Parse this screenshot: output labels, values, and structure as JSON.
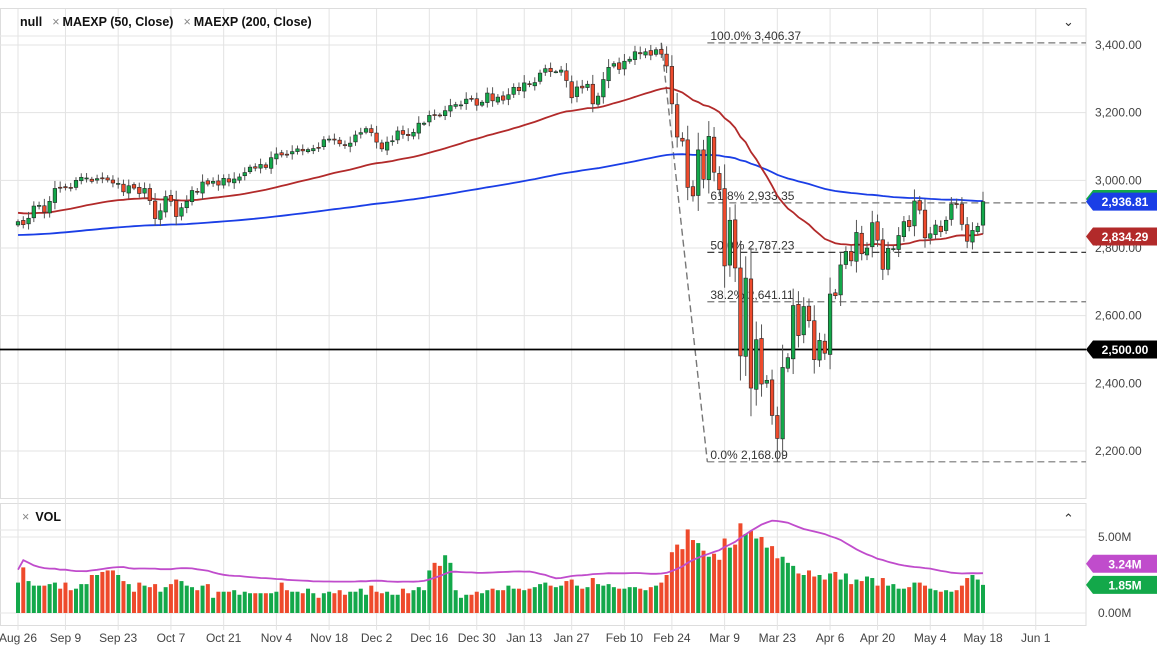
{
  "legend": {
    "main": "null",
    "ma50": "MAEXP (50, Close)",
    "ma200": "MAEXP (200, Close)",
    "close_icon": "close-x-icon"
  },
  "volume_pane": {
    "title": "VOL",
    "axis": [
      "5.00M",
      "0.00M"
    ],
    "ma_label": "3.24M",
    "last_label": "1.85M",
    "ma_color": "#c04ccc"
  },
  "colors": {
    "up": "#13a84a",
    "down": "#ee4a2c",
    "ema50": "#b22a2a",
    "ema200": "#1a3ee6",
    "fib": "#777777",
    "line_2500": "#000000"
  },
  "price_labels": {
    "ema200": "2,936.81",
    "ema50": "2,834.29",
    "level": "2,500.00"
  },
  "chart_data": {
    "type": "candlestick",
    "ylim": [
      2100,
      3460
    ],
    "y_ticks": [
      "2,200.00",
      "2,400.00",
      "2,600.00",
      "2,800.00",
      "3,000.00",
      "3,200.00",
      "3,400.00"
    ],
    "y_tick_values": [
      2200,
      2400,
      2600,
      2800,
      3000,
      3200,
      3400
    ],
    "x_ticks": [
      {
        "label": "Aug 26",
        "date": "8/26"
      },
      {
        "label": "Sep 9",
        "date": "9/9"
      },
      {
        "label": "Sep 23",
        "date": "9/23"
      },
      {
        "label": "Oct 7",
        "date": "10/7"
      },
      {
        "label": "Oct 21",
        "date": "10/21"
      },
      {
        "label": "Nov 4",
        "date": "11/4"
      },
      {
        "label": "Nov 18",
        "date": "11/18"
      },
      {
        "label": "Dec 2",
        "date": "12/2"
      },
      {
        "label": "Dec 16",
        "date": "12/16"
      },
      {
        "label": "Dec 30",
        "date": "12/30"
      },
      {
        "label": "Jan 13",
        "date": "1/13"
      },
      {
        "label": "Jan 27",
        "date": "1/27"
      },
      {
        "label": "Feb 10",
        "date": "2/10"
      },
      {
        "label": "Feb 24",
        "date": "2/24"
      },
      {
        "label": "Mar 9",
        "date": "3/9"
      },
      {
        "label": "Mar 23",
        "date": "3/23"
      },
      {
        "label": "Apr 6",
        "date": "4/6"
      },
      {
        "label": "Apr 20",
        "date": "4/20"
      },
      {
        "label": "May 4",
        "date": "5/4"
      },
      {
        "label": "May 18",
        "date": "5/18"
      },
      {
        "label": "Jun 1",
        "date": "6/1"
      }
    ],
    "horizontal_line": 2500,
    "fibonacci": [
      {
        "label": "100.0% 3,406.37",
        "value": 3406.37
      },
      {
        "label": "61.8% 2,933.35",
        "value": 2933.35
      },
      {
        "label": "50.0% 2,787.23",
        "value": 2787.23
      },
      {
        "label": "38.2% 2,641.11",
        "value": 2641.11
      },
      {
        "label": "0.0% 2,168.09",
        "value": 2168.09
      }
    ],
    "fib_high_date": "2/20",
    "fib_low_date": "3/23",
    "series_columns": [
      "date",
      "close",
      "volume_M"
    ],
    "series": [
      [
        "8/26",
        2878,
        2.0
      ],
      [
        "8/27",
        2869,
        3.0
      ],
      [
        "8/28",
        2888,
        2.1
      ],
      [
        "8/29",
        2924,
        1.8
      ],
      [
        "8/30",
        2926,
        1.8
      ],
      [
        "9/3",
        2906,
        1.8
      ],
      [
        "9/4",
        2938,
        1.9
      ],
      [
        "9/5",
        2976,
        2.0
      ],
      [
        "9/6",
        2979,
        1.6
      ],
      [
        "9/9",
        2978,
        2.0
      ],
      [
        "9/10",
        2979,
        1.5
      ],
      [
        "9/11",
        3000,
        1.6
      ],
      [
        "9/12",
        3009,
        1.9
      ],
      [
        "9/13",
        3007,
        1.9
      ],
      [
        "9/16",
        2997,
        2.5
      ],
      [
        "9/17",
        3005,
        2.5
      ],
      [
        "9/18",
        3006,
        2.7
      ],
      [
        "9/19",
        3001,
        2.8
      ],
      [
        "9/20",
        2992,
        2.8
      ],
      [
        "9/23",
        2991,
        2.5
      ],
      [
        "9/24",
        2966,
        2.1
      ],
      [
        "9/25",
        2984,
        1.9
      ],
      [
        "9/26",
        2977,
        1.4
      ],
      [
        "9/27",
        2961,
        2.0
      ],
      [
        "9/30",
        2976,
        1.8
      ],
      [
        "10/1",
        2940,
        1.7
      ],
      [
        "10/2",
        2887,
        1.9
      ],
      [
        "10/3",
        2910,
        1.4
      ],
      [
        "10/4",
        2952,
        1.7
      ],
      [
        "10/7",
        2938,
        1.9
      ],
      [
        "10/8",
        2893,
        2.2
      ],
      [
        "10/9",
        2919,
        2.1
      ],
      [
        "10/10",
        2938,
        1.8
      ],
      [
        "10/11",
        2970,
        1.7
      ],
      [
        "10/14",
        2966,
        1.5
      ],
      [
        "10/15",
        2995,
        1.8
      ],
      [
        "10/16",
        2989,
        1.9
      ],
      [
        "10/17",
        2997,
        1.0
      ],
      [
        "10/18",
        2986,
        1.4
      ],
      [
        "10/21",
        3006,
        1.4
      ],
      [
        "10/22",
        2995,
        1.4
      ],
      [
        "10/23",
        3004,
        1.5
      ],
      [
        "10/24",
        3010,
        1.2
      ],
      [
        "10/25",
        3023,
        1.4
      ],
      [
        "10/28",
        3039,
        1.3
      ],
      [
        "10/29",
        3036,
        1.3
      ],
      [
        "10/30",
        3047,
        1.3
      ],
      [
        "10/31",
        3038,
        1.3
      ],
      [
        "11/1",
        3067,
        1.3
      ],
      [
        "11/4",
        3078,
        1.4
      ],
      [
        "11/5",
        3075,
        2.0
      ],
      [
        "11/6",
        3077,
        1.5
      ],
      [
        "11/7",
        3085,
        1.4
      ],
      [
        "11/8",
        3093,
        1.4
      ],
      [
        "11/11",
        3087,
        1.3
      ],
      [
        "11/12",
        3091,
        1.6
      ],
      [
        "11/13",
        3094,
        1.3
      ],
      [
        "11/14",
        3097,
        1.0
      ],
      [
        "11/15",
        3120,
        1.3
      ],
      [
        "11/18",
        3122,
        1.4
      ],
      [
        "11/19",
        3120,
        1.3
      ],
      [
        "11/20",
        3108,
        1.5
      ],
      [
        "11/21",
        3104,
        1.2
      ],
      [
        "11/22",
        3110,
        1.4
      ],
      [
        "11/25",
        3134,
        1.4
      ],
      [
        "11/26",
        3141,
        1.6
      ],
      [
        "11/27",
        3153,
        1.2
      ],
      [
        "11/29",
        3141,
        1.8
      ],
      [
        "12/2",
        3113,
        1.4
      ],
      [
        "12/3",
        3093,
        1.3
      ],
      [
        "12/4",
        3113,
        1.4
      ],
      [
        "12/5",
        3117,
        1.2
      ],
      [
        "12/6",
        3146,
        1.2
      ],
      [
        "12/9",
        3136,
        1.6
      ],
      [
        "12/10",
        3132,
        1.3
      ],
      [
        "12/11",
        3142,
        1.5
      ],
      [
        "12/12",
        3169,
        1.7
      ],
      [
        "12/13",
        3169,
        1.5
      ],
      [
        "12/16",
        3192,
        2.8
      ],
      [
        "12/17",
        3192,
        3.3
      ],
      [
        "12/18",
        3191,
        3.1
      ],
      [
        "12/19",
        3206,
        3.8
      ],
      [
        "12/20",
        3221,
        3.3
      ],
      [
        "12/23",
        3224,
        1.5
      ],
      [
        "12/24",
        3223,
        1.0
      ],
      [
        "12/26",
        3240,
        1.2
      ],
      [
        "12/27",
        3240,
        1.2
      ],
      [
        "12/30",
        3222,
        1.4
      ],
      [
        "12/31",
        3231,
        1.3
      ],
      [
        "1/2",
        3258,
        1.5
      ],
      [
        "1/3",
        3235,
        1.6
      ],
      [
        "1/6",
        3246,
        1.5
      ],
      [
        "1/7",
        3237,
        1.5
      ],
      [
        "1/8",
        3253,
        1.8
      ],
      [
        "1/9",
        3275,
        1.6
      ],
      [
        "1/10",
        3265,
        1.6
      ],
      [
        "1/13",
        3288,
        1.5
      ],
      [
        "1/14",
        3283,
        1.6
      ],
      [
        "1/15",
        3289,
        1.7
      ],
      [
        "1/16",
        3317,
        1.9
      ],
      [
        "1/17",
        3330,
        2.0
      ],
      [
        "1/21",
        3321,
        1.8
      ],
      [
        "1/22",
        3321,
        1.7
      ],
      [
        "1/23",
        3326,
        1.8
      ],
      [
        "1/24",
        3295,
        2.1
      ],
      [
        "1/27",
        3244,
        2.2
      ],
      [
        "1/28",
        3276,
        1.8
      ],
      [
        "1/29",
        3273,
        1.6
      ],
      [
        "1/30",
        3284,
        1.7
      ],
      [
        "1/31",
        3226,
        2.3
      ],
      [
        "2/3",
        3249,
        1.9
      ],
      [
        "2/4",
        3298,
        1.8
      ],
      [
        "2/5",
        3334,
        1.9
      ],
      [
        "2/6",
        3345,
        1.7
      ],
      [
        "2/7",
        3328,
        1.6
      ],
      [
        "2/10",
        3352,
        1.6
      ],
      [
        "2/11",
        3358,
        1.7
      ],
      [
        "2/12",
        3380,
        1.7
      ],
      [
        "2/13",
        3374,
        1.6
      ],
      [
        "2/14",
        3380,
        1.5
      ],
      [
        "2/18",
        3370,
        1.7
      ],
      [
        "2/19",
        3386,
        1.8
      ],
      [
        "2/20",
        3373,
        2.0
      ],
      [
        "2/21",
        3338,
        2.5
      ],
      [
        "2/24",
        3226,
        4.0
      ],
      [
        "2/25",
        3128,
        4.5
      ],
      [
        "2/26",
        3116,
        4.2
      ],
      [
        "2/27",
        2979,
        5.5
      ],
      [
        "2/28",
        2954,
        4.8
      ],
      [
        "3/2",
        3090,
        4.6
      ],
      [
        "3/3",
        3003,
        4.1
      ],
      [
        "3/4",
        3130,
        3.7
      ],
      [
        "3/5",
        3024,
        3.9
      ],
      [
        "3/6",
        2972,
        3.5
      ],
      [
        "3/9",
        2747,
        4.9
      ],
      [
        "3/10",
        2882,
        4.3
      ],
      [
        "3/11",
        2741,
        4.5
      ],
      [
        "3/12",
        2481,
        5.9
      ],
      [
        "3/13",
        2711,
        5.2
      ],
      [
        "3/16",
        2386,
        5.4
      ],
      [
        "3/17",
        2529,
        4.9
      ],
      [
        "3/18",
        2398,
        5.0
      ],
      [
        "3/19",
        2409,
        4.3
      ],
      [
        "3/20",
        2305,
        4.4
      ],
      [
        "3/23",
        2237,
        3.6
      ],
      [
        "3/24",
        2447,
        3.7
      ],
      [
        "3/25",
        2476,
        3.3
      ],
      [
        "3/26",
        2630,
        3.1
      ],
      [
        "3/27",
        2541,
        2.6
      ],
      [
        "3/30",
        2627,
        2.5
      ],
      [
        "3/31",
        2585,
        2.8
      ],
      [
        "4/1",
        2470,
        2.4
      ],
      [
        "4/2",
        2527,
        2.5
      ],
      [
        "4/3",
        2489,
        2.2
      ],
      [
        "4/6",
        2664,
        2.6
      ],
      [
        "4/7",
        2659,
        2.7
      ],
      [
        "4/8",
        2750,
        2.2
      ],
      [
        "4/9",
        2790,
        2.6
      ],
      [
        "4/13",
        2762,
        1.9
      ],
      [
        "4/14",
        2846,
        2.2
      ],
      [
        "4/15",
        2783,
        2.1
      ],
      [
        "4/16",
        2800,
        2.4
      ],
      [
        "4/17",
        2875,
        2.3
      ],
      [
        "4/20",
        2823,
        1.8
      ],
      [
        "4/21",
        2737,
        2.3
      ],
      [
        "4/22",
        2799,
        1.8
      ],
      [
        "4/23",
        2798,
        1.9
      ],
      [
        "4/24",
        2837,
        1.6
      ],
      [
        "4/27",
        2878,
        1.6
      ],
      [
        "4/28",
        2863,
        1.7
      ],
      [
        "4/29",
        2939,
        2.0
      ],
      [
        "4/30",
        2912,
        2.0
      ],
      [
        "5/1",
        2830,
        1.8
      ],
      [
        "5/4",
        2842,
        1.6
      ],
      [
        "5/5",
        2868,
        1.5
      ],
      [
        "5/6",
        2848,
        1.4
      ],
      [
        "5/7",
        2882,
        1.5
      ],
      [
        "5/8",
        2930,
        1.4
      ],
      [
        "5/11",
        2930,
        1.5
      ],
      [
        "5/12",
        2870,
        1.8
      ],
      [
        "5/13",
        2820,
        2.3
      ],
      [
        "5/14",
        2852,
        2.5
      ],
      [
        "5/15",
        2864,
        2.2
      ],
      [
        "5/18",
        2937,
        1.85
      ]
    ]
  }
}
